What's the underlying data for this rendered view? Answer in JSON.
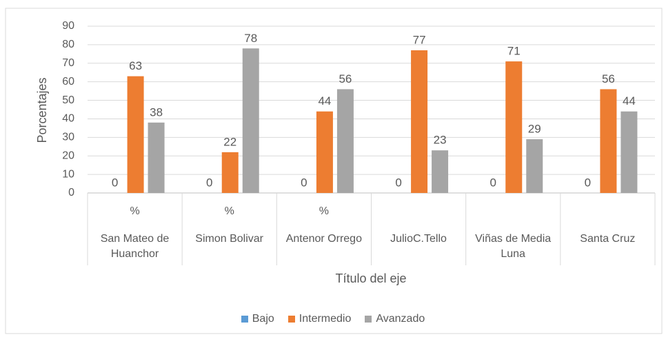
{
  "chart_data": {
    "type": "bar",
    "y_label": "Porcentajes",
    "x_label": "Título del eje",
    "categories": [
      "San Mateo de Huanchor",
      "Simon Bolivar",
      "Antenor Orrego",
      "JulioC.Tello",
      "Viñas de Media Luna",
      "Santa Cruz"
    ],
    "subcategories": [
      "%",
      "%",
      "%",
      null,
      null,
      null
    ],
    "series": [
      {
        "name": "Bajo",
        "color": "#5b9bd5",
        "values": [
          0,
          0,
          0,
          0,
          0,
          0
        ]
      },
      {
        "name": "Intermedio",
        "color": "#ed7d31",
        "values": [
          63,
          22,
          44,
          77,
          71,
          56
        ]
      },
      {
        "name": "Avanzado",
        "color": "#a5a5a5",
        "values": [
          38,
          78,
          56,
          23,
          29,
          44
        ]
      }
    ],
    "ylim": [
      0,
      90
    ],
    "yticks": [
      0,
      10,
      20,
      30,
      40,
      50,
      60,
      70,
      80,
      90
    ],
    "grid": true,
    "legend": "bottom"
  }
}
